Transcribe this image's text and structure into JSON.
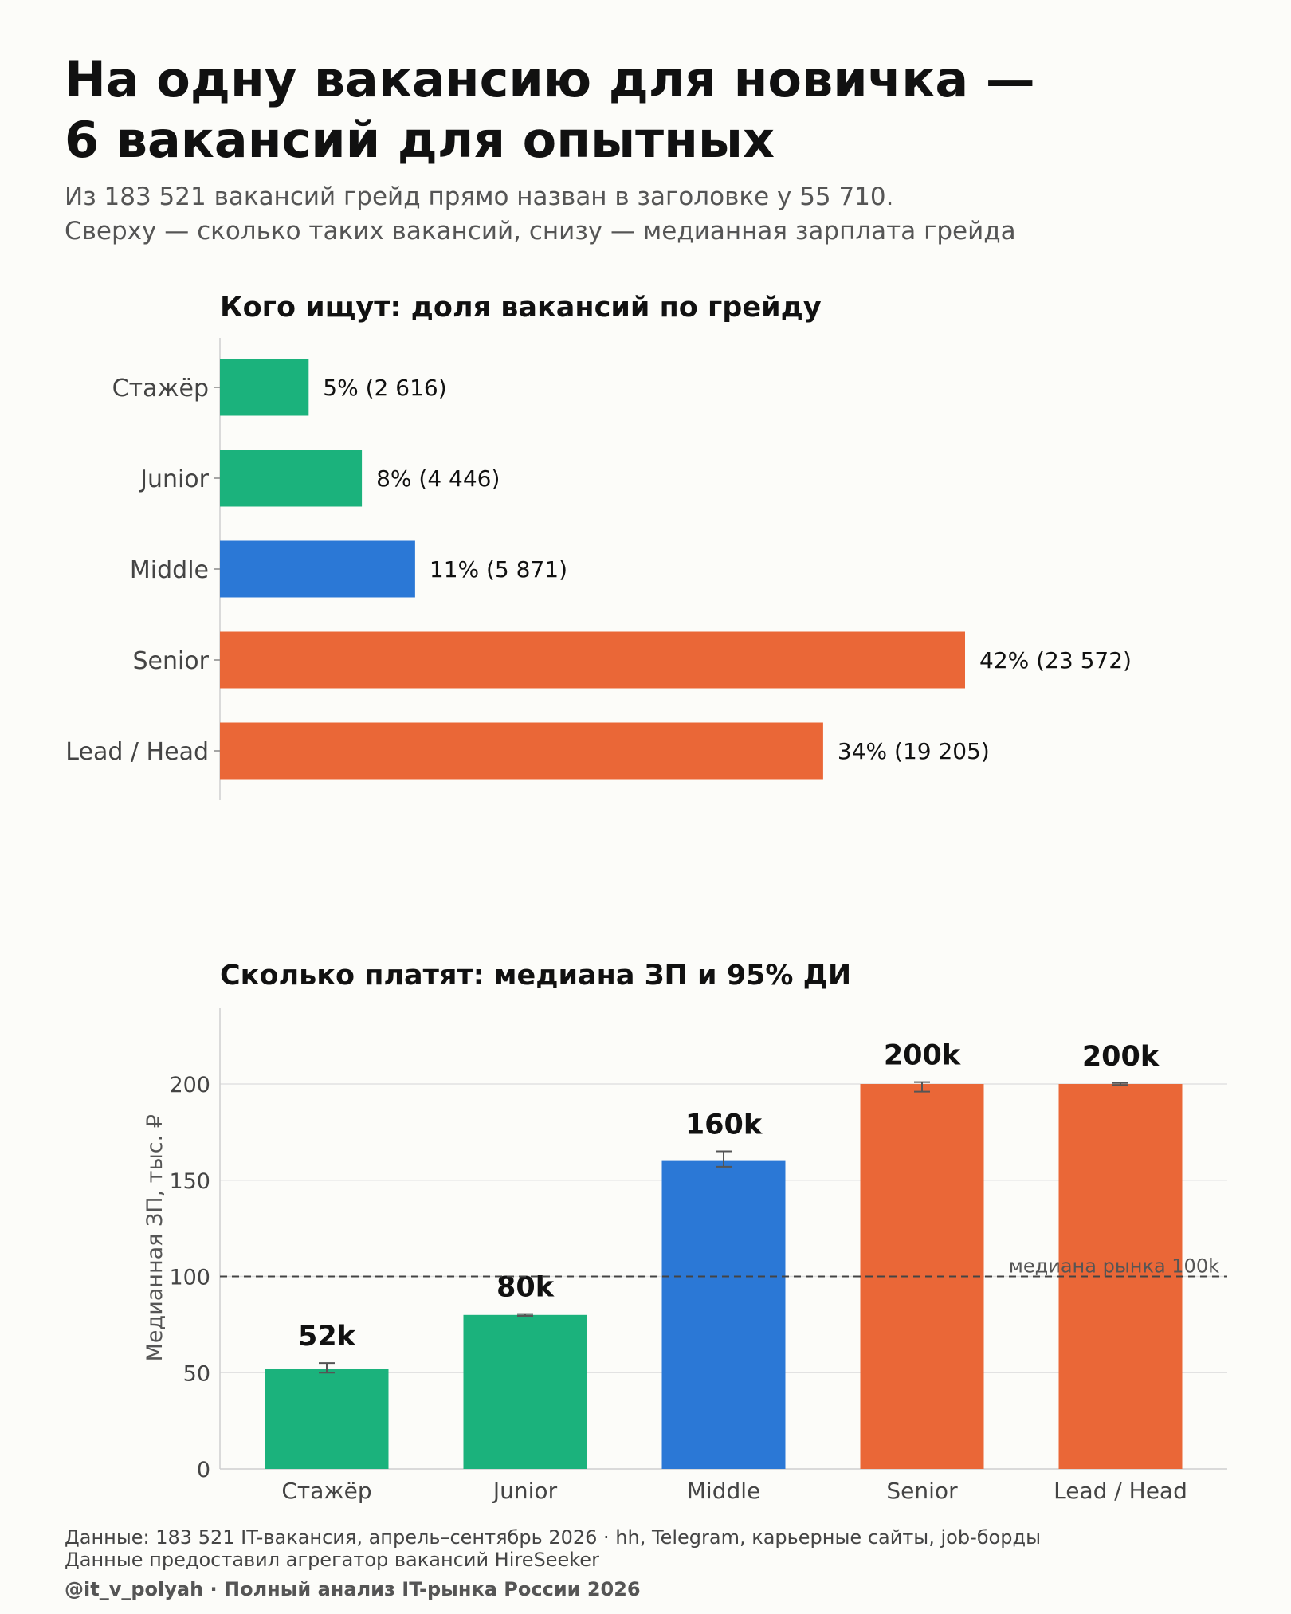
{
  "header": {
    "title_lines": [
      "На одну вакансию для новичка —",
      "6 вакансий для опытных"
    ],
    "subtitle_lines": [
      "Из 183 521 вакансий грейд прямо назван в заголовке у 55 710.",
      "Сверху — сколько таких вакансий, снизу — медианная зарплата грейда"
    ]
  },
  "colors": {
    "entry": "#1bb27c",
    "middle": "#2b78d6",
    "senior": "#ea6737",
    "grid": "#e2e2e2",
    "axis": "#cfcfcf",
    "errorbar": "#555555"
  },
  "chart_data": [
    {
      "type": "bar",
      "orientation": "horizontal",
      "title": "Кого ищут: доля вакансий по грейду",
      "categories": [
        "Стажёр",
        "Junior",
        "Middle",
        "Senior",
        "Lead / Head"
      ],
      "values": [
        5,
        8,
        11,
        42,
        34
      ],
      "counts": [
        2616,
        4446,
        5871,
        23572,
        19205
      ],
      "value_labels": [
        "5%  (2 616)",
        "8%  (4 446)",
        "11%  (5 871)",
        "42%  (23 572)",
        "34%  (19 205)"
      ],
      "bar_colors": [
        "entry",
        "entry",
        "middle",
        "senior",
        "senior"
      ],
      "xlim": [
        0,
        50
      ],
      "grid": false
    },
    {
      "type": "bar",
      "orientation": "vertical",
      "title": "Сколько платят: медиана ЗП и 95% ДИ",
      "ylabel": "Медианная ЗП, тыс. ₽",
      "categories": [
        "Стажёр",
        "Junior",
        "Middle",
        "Senior",
        "Lead / Head"
      ],
      "values": [
        52,
        80,
        160,
        200,
        200
      ],
      "ci_low": [
        50,
        79.5,
        157,
        196,
        199.5
      ],
      "ci_high": [
        55,
        80.5,
        165,
        201,
        200.5
      ],
      "value_labels": [
        "52k",
        "80k",
        "160k",
        "200k",
        "200k"
      ],
      "bar_colors": [
        "entry",
        "entry",
        "middle",
        "senior",
        "senior"
      ],
      "yticks": [
        "0",
        "50",
        "100",
        "150",
        "200"
      ],
      "ylim": [
        0,
        240
      ],
      "reference_line": {
        "value": 100,
        "label": "медиана рынка 100k"
      },
      "grid": true
    }
  ],
  "footer": {
    "source": "Данные: 183 521 IT-вакансия, апрель–сентябрь 2026 · hh, Telegram, карьерные сайты, job-борды",
    "provider": "Данные предоставил агрегатор вакансий HireSeeker",
    "credit": "@it_v_polyah · Полный анализ IT-рынка России 2026"
  }
}
